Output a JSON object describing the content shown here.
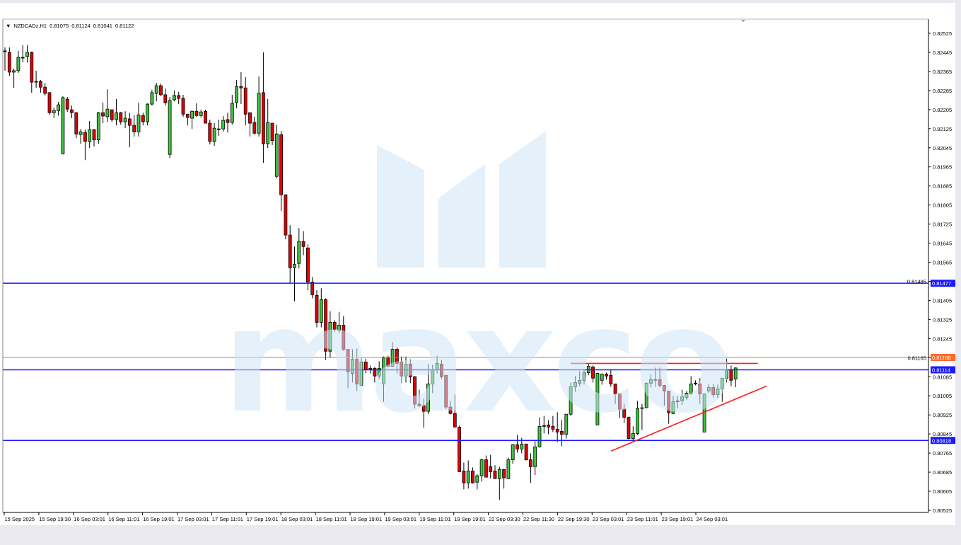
{
  "header": {
    "menu_icon": "triangle-down-icon",
    "symbol": "NZDCADz,H1",
    "open": "0.81075",
    "high": "0.81124",
    "low": "0.81041",
    "close": "0.81122"
  },
  "watermark": {
    "text": "maxco"
  },
  "colors": {
    "bull": "#3ec43e",
    "bear": "#e00000",
    "wick": "#000000",
    "support_resistance": "#1a1aff",
    "orange_level": "#ff6a2a",
    "trendline": "#ff1a1a",
    "watermark": "#dcecf8"
  },
  "chart_data": {
    "type": "candlestick",
    "symbol": "NZDCADz",
    "timeframe": "H1",
    "ylim": [
      0.80525,
      0.82525
    ],
    "grid": false,
    "y_tick_labels": [
      "0.82525",
      "0.82445",
      "0.82365",
      "0.82285",
      "0.82205",
      "0.82125",
      "0.82045",
      "0.81965",
      "0.81885",
      "0.81805",
      "0.81725",
      "0.81645",
      "0.81565",
      "0.81485",
      "0.81405",
      "0.81325",
      "0.81245",
      "0.81165",
      "0.81085",
      "0.81005",
      "0.80925",
      "0.80845",
      "0.80765",
      "0.80685",
      "0.80605",
      "0.80525"
    ],
    "x_tick_labels": [
      "15 Sep 2025",
      "15 Sep 19:30",
      "16 Sep 03:01",
      "16 Sep 11:01",
      "16 Sep 19:01",
      "17 Sep 03:01",
      "17 Sep 11:01",
      "17 Sep 19:01",
      "18 Sep 03:01",
      "18 Sep 11:01",
      "18 Sep 19:01",
      "19 Sep 03:01",
      "19 Sep 11:01",
      "19 Sep 19:01",
      "22 Sep 03:30",
      "22 Sep 11:30",
      "22 Sep 19:30",
      "23 Sep 03:01",
      "23 Sep 11:01",
      "23 Sep 19:01",
      "24 Sep 03:01"
    ],
    "levels": [
      {
        "price": 0.81477,
        "label": "0.81477",
        "color": "#1a1aff"
      },
      {
        "price": 0.81166,
        "label": "0.81166",
        "color": "#ff6a2a"
      },
      {
        "price": 0.81114,
        "label": "0.81114",
        "color": "#1a1aff"
      },
      {
        "price": 0.80818,
        "label": "0.80818",
        "color": "#1a1aff"
      }
    ],
    "trendlines": [
      {
        "name": "resistance",
        "from": {
          "bar": 127,
          "price": 0.81141
        },
        "to": {
          "bar": 169,
          "price": 0.81141
        }
      },
      {
        "name": "rising-support",
        "from": {
          "bar": 136,
          "price": 0.80773
        },
        "to": {
          "bar": 171,
          "price": 0.81046
        }
      }
    ],
    "candles_ohlc": [
      [
        0.82451,
        0.82466,
        0.82368,
        0.82448
      ],
      [
        0.82445,
        0.82466,
        0.82347,
        0.82362
      ],
      [
        0.82362,
        0.82377,
        0.82296,
        0.82368
      ],
      [
        0.82368,
        0.82451,
        0.82359,
        0.82424
      ],
      [
        0.82424,
        0.82475,
        0.82403,
        0.82421
      ],
      [
        0.82427,
        0.82475,
        0.82403,
        0.82445
      ],
      [
        0.82445,
        0.82448,
        0.82276,
        0.8232
      ],
      [
        0.82323,
        0.82368,
        0.82296,
        0.8232
      ],
      [
        0.82323,
        0.82329,
        0.82276,
        0.82299
      ],
      [
        0.82299,
        0.82316,
        0.82264,
        0.82273
      ],
      [
        0.82276,
        0.82279,
        0.82183,
        0.82192
      ],
      [
        0.82192,
        0.82213,
        0.82169,
        0.82201
      ],
      [
        0.82201,
        0.82237,
        0.8218,
        0.82225
      ],
      [
        0.8202,
        0.82261,
        0.82017,
        0.82255
      ],
      [
        0.82249,
        0.82258,
        0.82195,
        0.82207
      ],
      [
        0.82204,
        0.82222,
        0.82169,
        0.82192
      ],
      [
        0.82192,
        0.82195,
        0.82086,
        0.82103
      ],
      [
        0.821,
        0.82124,
        0.82062,
        0.82112
      ],
      [
        0.82109,
        0.82121,
        0.81993,
        0.82072
      ],
      [
        0.82071,
        0.82157,
        0.82044,
        0.82121
      ],
      [
        0.82121,
        0.82124,
        0.8205,
        0.82078
      ],
      [
        0.82078,
        0.82195,
        0.82062,
        0.82192
      ],
      [
        0.82192,
        0.82234,
        0.82148,
        0.82178
      ],
      [
        0.82175,
        0.8229,
        0.82154,
        0.82207
      ],
      [
        0.82204,
        0.82207,
        0.82154,
        0.82163
      ],
      [
        0.82163,
        0.82249,
        0.82139,
        0.82192
      ],
      [
        0.82192,
        0.82195,
        0.82142,
        0.82154
      ],
      [
        0.82154,
        0.82198,
        0.82127,
        0.82169
      ],
      [
        0.82166,
        0.82192,
        0.82047,
        0.82139
      ],
      [
        0.82139,
        0.82183,
        0.82092,
        0.82112
      ],
      [
        0.82112,
        0.82234,
        0.82092,
        0.82183
      ],
      [
        0.8218,
        0.82192,
        0.82139,
        0.82154
      ],
      [
        0.82154,
        0.82231,
        0.82139,
        0.82228
      ],
      [
        0.82228,
        0.82288,
        0.82222,
        0.82276
      ],
      [
        0.82273,
        0.82317,
        0.8224,
        0.82305
      ],
      [
        0.82305,
        0.82314,
        0.82261,
        0.82267
      ],
      [
        0.82267,
        0.82293,
        0.82222,
        0.82234
      ],
      [
        0.82017,
        0.82258,
        0.82002,
        0.82243
      ],
      [
        0.82246,
        0.82285,
        0.8224,
        0.82264
      ],
      [
        0.82264,
        0.82279,
        0.82228,
        0.82252
      ],
      [
        0.82252,
        0.82267,
        0.82175,
        0.82186
      ],
      [
        0.82186,
        0.82186,
        0.82139,
        0.82172
      ],
      [
        0.82169,
        0.82201,
        0.82124,
        0.82198
      ],
      [
        0.82198,
        0.82231,
        0.82175,
        0.8218
      ],
      [
        0.8218,
        0.82204,
        0.82172,
        0.82195
      ],
      [
        0.82198,
        0.82204,
        0.82148,
        0.82148
      ],
      [
        0.82148,
        0.82163,
        0.82059,
        0.82072
      ],
      [
        0.82072,
        0.82148,
        0.82053,
        0.82127
      ],
      [
        0.82124,
        0.82163,
        0.82095,
        0.82121
      ],
      [
        0.82124,
        0.82178,
        0.82112,
        0.8216
      ],
      [
        0.82163,
        0.82192,
        0.82109,
        0.82151
      ],
      [
        0.82151,
        0.82267,
        0.82142,
        0.82231
      ],
      [
        0.82234,
        0.82329,
        0.8221,
        0.82302
      ],
      [
        0.82302,
        0.82362,
        0.82228,
        0.82296
      ],
      [
        0.82296,
        0.82341,
        0.82139,
        0.82186
      ],
      [
        0.82192,
        0.82192,
        0.82092,
        0.82148
      ],
      [
        0.82151,
        0.82175,
        0.821,
        0.82106
      ],
      [
        0.82106,
        0.82344,
        0.82092,
        0.82273
      ],
      [
        0.82276,
        0.82445,
        0.81982,
        0.82062
      ],
      [
        0.82062,
        0.82249,
        0.82044,
        0.82151
      ],
      [
        0.82148,
        0.82148,
        0.82056,
        0.82075
      ],
      [
        0.81925,
        0.82142,
        0.81916,
        0.82103
      ],
      [
        0.821,
        0.82115,
        0.8178,
        0.81848
      ],
      [
        0.81848,
        0.81848,
        0.81661,
        0.81679
      ],
      [
        0.81679,
        0.8172,
        0.81479,
        0.81542
      ],
      [
        0.81542,
        0.81631,
        0.81402,
        0.81557
      ],
      [
        0.8156,
        0.81708,
        0.81539,
        0.81652
      ],
      [
        0.81652,
        0.81696,
        0.81595,
        0.81631
      ],
      [
        0.81625,
        0.8164,
        0.81447,
        0.81482
      ],
      [
        0.81482,
        0.81503,
        0.81414,
        0.81429
      ],
      [
        0.81426,
        0.81447,
        0.81292,
        0.81313
      ],
      [
        0.81313,
        0.81456,
        0.81292,
        0.81408
      ],
      [
        0.81408,
        0.81414,
        0.81155,
        0.81192
      ],
      [
        0.81192,
        0.8136,
        0.81164,
        0.81313
      ],
      [
        0.81313,
        0.81322,
        0.81274,
        0.81283
      ],
      [
        0.8128,
        0.81357,
        0.81268,
        0.81301
      ],
      [
        0.81301,
        0.81339,
        0.81194,
        0.812
      ],
      [
        0.812,
        0.812,
        0.81037,
        0.81105
      ],
      [
        0.81099,
        0.812,
        0.81061,
        0.81158
      ],
      [
        0.81158,
        0.81203,
        0.81025,
        0.81055
      ],
      [
        0.81049,
        0.81164,
        0.81046,
        0.81147
      ],
      [
        0.81147,
        0.81161,
        0.81099,
        0.81114
      ],
      [
        0.8112,
        0.81132,
        0.81099,
        0.81117
      ],
      [
        0.8112,
        0.81126,
        0.81061,
        0.81088
      ],
      [
        0.81088,
        0.8115,
        0.81076,
        0.8112
      ],
      [
        0.81055,
        0.8117,
        0.8098,
        0.81164
      ],
      [
        0.81164,
        0.81173,
        0.81126,
        0.81129
      ],
      [
        0.81129,
        0.8123,
        0.81126,
        0.812
      ],
      [
        0.812,
        0.81209,
        0.81099,
        0.81141
      ],
      [
        0.81147,
        0.8117,
        0.81058,
        0.81088
      ],
      [
        0.81088,
        0.8117,
        0.81061,
        0.81138
      ],
      [
        0.81138,
        0.81158,
        0.81058,
        0.81085
      ],
      [
        0.81085,
        0.81088,
        0.80952,
        0.8097
      ],
      [
        0.8097,
        0.81031,
        0.80958,
        0.80964
      ],
      [
        0.80964,
        0.80993,
        0.80871,
        0.8094
      ],
      [
        0.8094,
        0.81138,
        0.80928,
        0.81055
      ],
      [
        0.81055,
        0.81135,
        0.81016,
        0.81114
      ],
      [
        0.81114,
        0.81173,
        0.81099,
        0.81141
      ],
      [
        0.81138,
        0.81155,
        0.81076,
        0.81085
      ],
      [
        0.81091,
        0.81091,
        0.80949,
        0.80958
      ],
      [
        0.80958,
        0.80984,
        0.80928,
        0.80931
      ],
      [
        0.80931,
        0.8101,
        0.80874,
        0.80874
      ],
      [
        0.80874,
        0.8088,
        0.80687,
        0.80687
      ],
      [
        0.8069,
        0.80725,
        0.80613,
        0.8064
      ],
      [
        0.8064,
        0.80734,
        0.80616,
        0.8069
      ],
      [
        0.8069,
        0.80705,
        0.80637,
        0.8064
      ],
      [
        0.80643,
        0.80676,
        0.80613,
        0.8067
      ],
      [
        0.8067,
        0.8074,
        0.80646,
        0.80737
      ],
      [
        0.80737,
        0.80755,
        0.80664,
        0.80664
      ],
      [
        0.80708,
        0.80758,
        0.80658,
        0.80687
      ],
      [
        0.8069,
        0.80714,
        0.80658,
        0.80658
      ],
      [
        0.80658,
        0.80708,
        0.80568,
        0.80696
      ],
      [
        0.80696,
        0.80699,
        0.80616,
        0.80661
      ],
      [
        0.80658,
        0.80746,
        0.80655,
        0.80737
      ],
      [
        0.80737,
        0.80803,
        0.8072,
        0.808
      ],
      [
        0.808,
        0.80841,
        0.80767,
        0.80782
      ],
      [
        0.80782,
        0.80829,
        0.80764,
        0.80803
      ],
      [
        0.80803,
        0.80803,
        0.80734,
        0.80737
      ],
      [
        0.80737,
        0.80764,
        0.8064,
        0.80708
      ],
      [
        0.80708,
        0.80815,
        0.80673,
        0.80791
      ],
      [
        0.80791,
        0.80915,
        0.80788,
        0.80877
      ],
      [
        0.8088,
        0.80921,
        0.80847,
        0.80877
      ],
      [
        0.80883,
        0.80903,
        0.80844,
        0.80874
      ],
      [
        0.80877,
        0.80921,
        0.80853,
        0.80865
      ],
      [
        0.80865,
        0.80936,
        0.80811,
        0.80853
      ],
      [
        0.80856,
        0.80903,
        0.80794,
        0.80844
      ],
      [
        0.80844,
        0.80928,
        0.80826,
        0.80928
      ],
      [
        0.80928,
        0.81061,
        0.80921,
        0.81043
      ],
      [
        0.81043,
        0.81088,
        0.81022,
        0.81061
      ],
      [
        0.81058,
        0.81108,
        0.81046,
        0.8107
      ],
      [
        0.8107,
        0.81117,
        0.81052,
        0.81102
      ],
      [
        0.81102,
        0.81141,
        0.81091,
        0.81129
      ],
      [
        0.81126,
        0.81132,
        0.81061,
        0.81079
      ],
      [
        0.80883,
        0.81102,
        0.80883,
        0.81099
      ],
      [
        0.8107,
        0.81099,
        0.81052,
        0.81096
      ],
      [
        0.81096,
        0.81102,
        0.81073,
        0.81088
      ],
      [
        0.81091,
        0.81117,
        0.81043,
        0.81055
      ],
      [
        0.81055,
        0.81055,
        0.80971,
        0.81013
      ],
      [
        0.81013,
        0.81013,
        0.80912,
        0.80949
      ],
      [
        0.80949,
        0.80971,
        0.80891,
        0.80915
      ],
      [
        0.80915,
        0.80918,
        0.80823,
        0.80826
      ],
      [
        0.80826,
        0.80877,
        0.80811,
        0.80847
      ],
      [
        0.80847,
        0.80984,
        0.80841,
        0.80952
      ],
      [
        0.80952,
        0.80971,
        0.80862,
        0.80955
      ],
      [
        0.80955,
        0.81061,
        0.80955,
        0.81058
      ],
      [
        0.81058,
        0.81096,
        0.8104,
        0.81073
      ],
      [
        0.81073,
        0.81123,
        0.81043,
        0.8107
      ],
      [
        0.81073,
        0.81123,
        0.8104,
        0.81049
      ],
      [
        0.81049,
        0.81049,
        0.80964,
        0.81025
      ],
      [
        0.81025,
        0.81025,
        0.80888,
        0.80934
      ],
      [
        0.80931,
        0.81004,
        0.80928,
        0.8098
      ],
      [
        0.80984,
        0.81004,
        0.80952,
        0.8098
      ],
      [
        0.80984,
        0.81031,
        0.80967,
        0.81001
      ],
      [
        0.80998,
        0.81025,
        0.80987,
        0.81016
      ],
      [
        0.81016,
        0.81088,
        0.8101,
        0.81055
      ],
      [
        0.81058,
        0.8107,
        0.81049,
        0.81055
      ],
      [
        0.81055,
        0.81079,
        0.80971,
        0.81013
      ],
      [
        0.80853,
        0.81013,
        0.80853,
        0.81013
      ],
      [
        0.81025,
        0.81055,
        0.81016,
        0.8104
      ],
      [
        0.8104,
        0.81055,
        0.80998,
        0.8101
      ],
      [
        0.8101,
        0.81052,
        0.80995,
        0.81034
      ],
      [
        0.81034,
        0.81079,
        0.8098,
        0.81079
      ],
      [
        0.81079,
        0.81161,
        0.81061,
        0.81114
      ],
      [
        0.81114,
        0.81132,
        0.81046,
        0.8107
      ],
      [
        0.81075,
        0.81124,
        0.81041,
        0.81122
      ]
    ]
  }
}
